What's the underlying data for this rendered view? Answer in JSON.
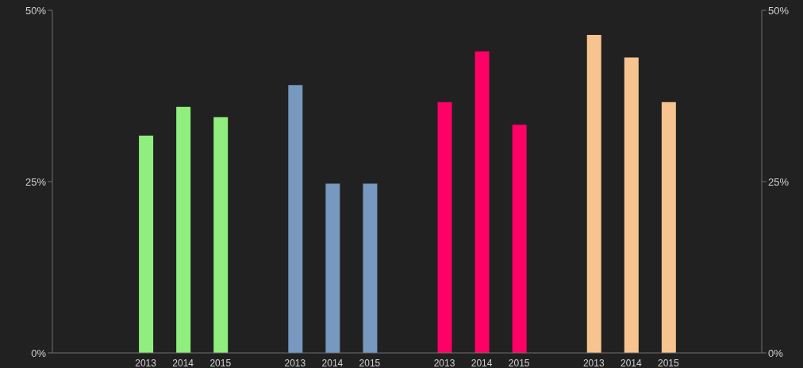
{
  "chart_data": {
    "type": "bar",
    "categories": [
      null,
      null,
      "2013",
      "2014",
      "2015",
      null,
      "2013",
      "2014",
      "2015",
      null,
      "2013",
      "2014",
      "2015",
      null,
      "2013",
      "2014",
      "2015",
      null,
      null
    ],
    "values": [
      null,
      null,
      31.7,
      35.9,
      34.4,
      null,
      39.1,
      24.7,
      24.7,
      null,
      36.6,
      44.0,
      33.3,
      null,
      46.4,
      43.1,
      36.6,
      null,
      null
    ],
    "colors": [
      null,
      null,
      "#90ee7e",
      "#90ee7e",
      "#90ee7e",
      null,
      "#7798bf",
      "#7798bf",
      "#7798bf",
      null,
      "#ff0066",
      "#ff0066",
      "#ff0066",
      null,
      "#f7c490",
      "#f7c490",
      "#f7c490",
      null,
      null
    ],
    "ylim": [
      0,
      50
    ],
    "yticks": [
      {
        "value": 0,
        "label": "0%"
      },
      {
        "value": 25,
        "label": "25%"
      },
      {
        "value": 50,
        "label": "50%"
      }
    ],
    "y2lim": [
      0,
      50
    ],
    "y2ticks": [
      {
        "value": 0,
        "label": "0%"
      },
      {
        "value": 25,
        "label": "25%"
      },
      {
        "value": 50,
        "label": "50%"
      }
    ],
    "grid": false,
    "legend": false
  }
}
